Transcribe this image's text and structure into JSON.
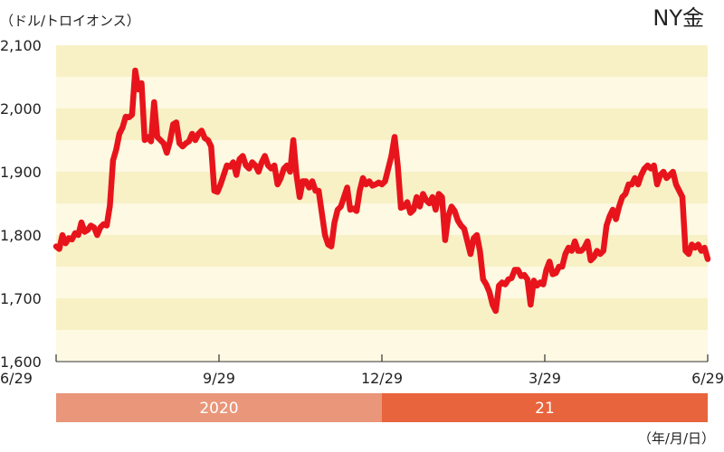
{
  "chart_data": {
    "type": "line",
    "title": "NY金",
    "ylabel": "（ドル/トロイオンス）",
    "xunit": "（年/月/日）",
    "ylim": [
      1600,
      2100
    ],
    "y_ticks": [
      "1,600",
      "1,700",
      "1,800",
      "1,900",
      "2,000",
      "2,100"
    ],
    "x_ticks": [
      "6/29",
      "9/29",
      "12/29",
      "3/29",
      "6/29"
    ],
    "years": [
      "2020",
      "21"
    ],
    "colors": {
      "line": "#e8141c",
      "band_light": "#fdf9e2",
      "band_dark": "#f8f1c6",
      "year_2020": "#e9967a",
      "year_21": "#e8643c"
    },
    "series": [
      {
        "values": [
          1782,
          1778,
          1800,
          1787,
          1795,
          1793,
          1803,
          1800,
          1820,
          1805,
          1808,
          1815,
          1812,
          1800,
          1812,
          1817,
          1815,
          1846,
          1918,
          1935,
          1960,
          1970,
          1987,
          1986,
          1990,
          2060,
          2030,
          2040,
          1950,
          1955,
          1948,
          2010,
          1955,
          1950,
          1945,
          1930,
          1948,
          1975,
          1978,
          1945,
          1940,
          1945,
          1948,
          1960,
          1950,
          1960,
          1965,
          1953,
          1950,
          1940,
          1870,
          1868,
          1880,
          1895,
          1910,
          1908,
          1915,
          1895,
          1920,
          1925,
          1910,
          1905,
          1915,
          1910,
          1900,
          1915,
          1925,
          1910,
          1905,
          1910,
          1880,
          1890,
          1905,
          1910,
          1900,
          1950,
          1895,
          1860,
          1885,
          1885,
          1875,
          1885,
          1870,
          1870,
          1835,
          1800,
          1785,
          1782,
          1820,
          1840,
          1845,
          1860,
          1875,
          1840,
          1842,
          1838,
          1870,
          1890,
          1880,
          1885,
          1878,
          1880,
          1883,
          1880,
          1885,
          1905,
          1925,
          1955,
          1910,
          1843,
          1845,
          1852,
          1835,
          1840,
          1860,
          1845,
          1865,
          1855,
          1850,
          1860,
          1840,
          1865,
          1860,
          1792,
          1830,
          1845,
          1838,
          1823,
          1815,
          1810,
          1790,
          1770,
          1795,
          1800,
          1775,
          1730,
          1722,
          1710,
          1690,
          1680,
          1720,
          1725,
          1722,
          1730,
          1732,
          1745,
          1745,
          1735,
          1737,
          1730,
          1690,
          1728,
          1720,
          1725,
          1722,
          1745,
          1758,
          1738,
          1740,
          1750,
          1750,
          1770,
          1780,
          1775,
          1790,
          1775,
          1775,
          1780,
          1790,
          1760,
          1765,
          1775,
          1770,
          1775,
          1815,
          1830,
          1840,
          1825,
          1845,
          1860,
          1865,
          1880,
          1880,
          1890,
          1880,
          1895,
          1905,
          1910,
          1905,
          1910,
          1880,
          1895,
          1900,
          1890,
          1895,
          1900,
          1880,
          1870,
          1860,
          1775,
          1770,
          1785,
          1780,
          1785,
          1775,
          1780,
          1762
        ]
      }
    ]
  }
}
